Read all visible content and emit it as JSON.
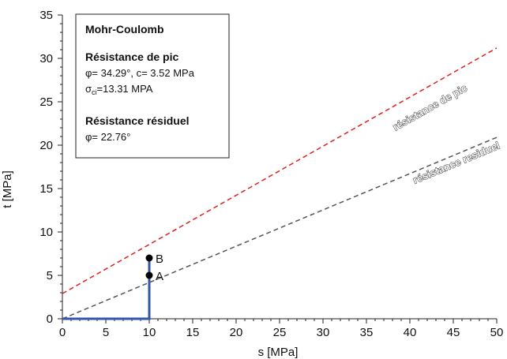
{
  "chart_data": {
    "type": "line",
    "xlabel": "s [MPa]",
    "ylabel": "t [MPa]",
    "xlim": [
      0,
      50
    ],
    "ylim": [
      0,
      35
    ],
    "xticks": [
      0,
      5,
      10,
      15,
      20,
      25,
      30,
      35,
      40,
      45,
      50
    ],
    "yticks": [
      0,
      5,
      10,
      15,
      20,
      25,
      30,
      35
    ],
    "grid": false,
    "series": [
      {
        "name": "résistance de pic",
        "style": "dashed",
        "color": "#e02020",
        "x": [
          0,
          50
        ],
        "y": [
          2.9,
          31.2
        ]
      },
      {
        "name": "résistance residuel",
        "style": "dashed",
        "color": "#555555",
        "x": [
          0,
          50
        ],
        "y": [
          0,
          20.9
        ]
      },
      {
        "name": "",
        "style": "solid",
        "color": "#3355aa",
        "x": [
          0,
          10,
          10
        ],
        "y": [
          0,
          0,
          7
        ]
      }
    ],
    "points": [
      {
        "label": "A",
        "x": 10,
        "y": 5
      },
      {
        "label": "B",
        "x": 10,
        "y": 7
      }
    ],
    "line_labels": [
      {
        "text": "résistance de pic",
        "x": 42.5,
        "y": 24.0
      },
      {
        "text": "résistance residuel",
        "x": 45.5,
        "y": 17.6
      }
    ],
    "legend": {
      "placement": "top-left",
      "title": "Mohr-Coulomb",
      "peak_heading": "Résistance de pic",
      "peak_line1": "φ= 34.29°, c= 3.52 MPa",
      "peak_sigma_main": "σ",
      "peak_sigma_sub": "ci",
      "peak_sigma_rest": "=13.31 MPA",
      "residual_heading": "Résistance résiduel",
      "residual_line1": "φ= 22.76°"
    }
  }
}
